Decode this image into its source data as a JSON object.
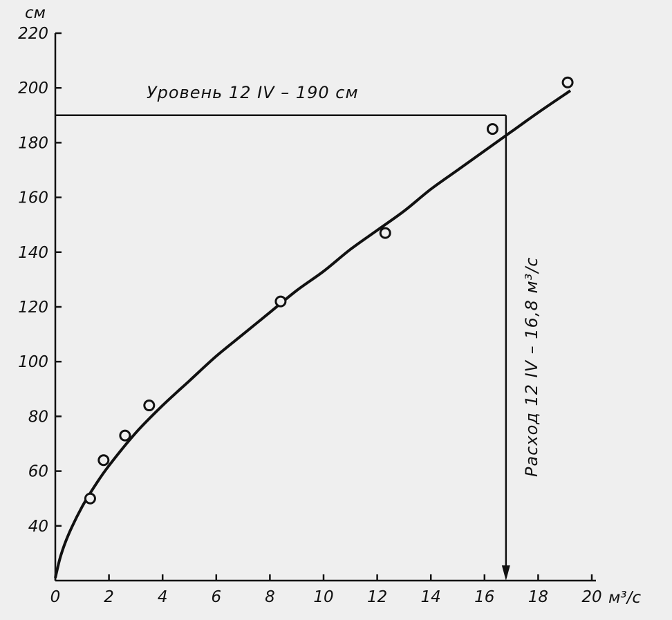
{
  "chart_data": {
    "type": "scatter",
    "title": "",
    "xlabel": "м³/с",
    "ylabel": "см",
    "xlim": [
      0,
      20
    ],
    "ylim": [
      20,
      220
    ],
    "x_ticks": [
      "0",
      "2",
      "4",
      "6",
      "8",
      "10",
      "12",
      "14",
      "16",
      "18",
      "20"
    ],
    "y_ticks": [
      "40",
      "60",
      "80",
      "100",
      "120",
      "140",
      "160",
      "180",
      "200",
      "220"
    ],
    "x_tick_values": [
      0,
      2,
      4,
      6,
      8,
      10,
      12,
      14,
      16,
      18,
      20
    ],
    "y_tick_values": [
      40,
      60,
      80,
      100,
      120,
      140,
      160,
      180,
      200,
      220
    ],
    "x_unit": "м³/с",
    "y_unit": "см",
    "series": [
      {
        "points": [
          {
            "x": 1.3,
            "y": 50
          },
          {
            "x": 1.8,
            "y": 64
          },
          {
            "x": 2.6,
            "y": 73
          },
          {
            "x": 3.5,
            "y": 84
          },
          {
            "x": 8.4,
            "y": 122
          },
          {
            "x": 12.3,
            "y": 147
          },
          {
            "x": 16.3,
            "y": 185
          },
          {
            "x": 19.1,
            "y": 202
          }
        ]
      }
    ],
    "curve": [
      {
        "x": 0,
        "y": 21
      },
      {
        "x": 0.2,
        "y": 29
      },
      {
        "x": 0.5,
        "y": 37
      },
      {
        "x": 1,
        "y": 47
      },
      {
        "x": 1.5,
        "y": 55
      },
      {
        "x": 2,
        "y": 62
      },
      {
        "x": 3,
        "y": 74
      },
      {
        "x": 4,
        "y": 84
      },
      {
        "x": 5,
        "y": 93
      },
      {
        "x": 6,
        "y": 102
      },
      {
        "x": 7,
        "y": 110
      },
      {
        "x": 8,
        "y": 118
      },
      {
        "x": 9,
        "y": 126
      },
      {
        "x": 10,
        "y": 133
      },
      {
        "x": 11,
        "y": 141
      },
      {
        "x": 12,
        "y": 148
      },
      {
        "x": 13,
        "y": 155
      },
      {
        "x": 14,
        "y": 163
      },
      {
        "x": 15,
        "y": 170
      },
      {
        "x": 16,
        "y": 177
      },
      {
        "x": 17,
        "y": 184
      },
      {
        "x": 18,
        "y": 191
      },
      {
        "x": 19.2,
        "y": 199
      }
    ],
    "reference": {
      "x": 16.8,
      "y": 190
    },
    "annotations": {
      "level": "Уровень  12 IV – 190 см",
      "discharge": "Расход  12 IV – 16,8 м³/с"
    },
    "grid": false,
    "legend": "none"
  }
}
